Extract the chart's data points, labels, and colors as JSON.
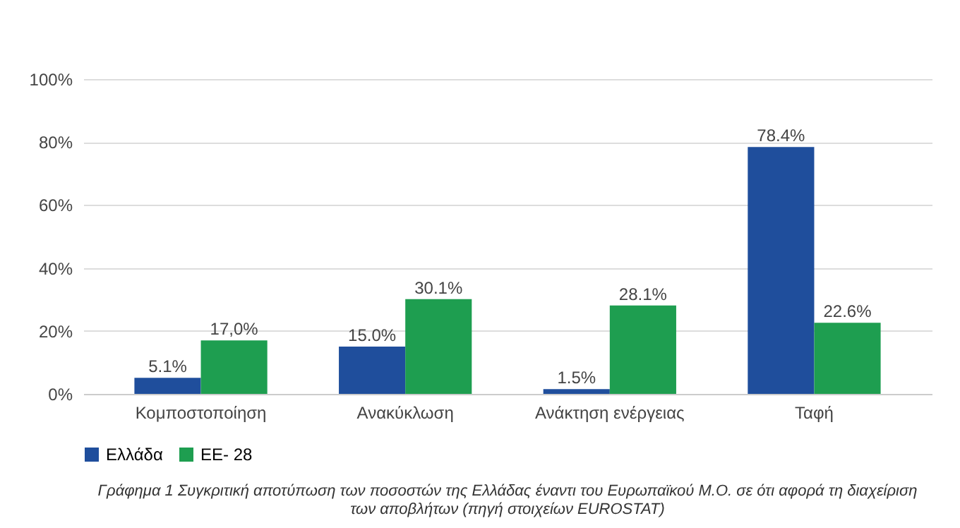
{
  "chart_data": {
    "type": "bar",
    "categories": [
      "Κομποστοποίηση",
      "Ανακύκλωση",
      "Ανάκτηση ενέργειας",
      "Ταφή"
    ],
    "series": [
      {
        "name": "Ελλάδα",
        "color": "#1f4e9c",
        "values": [
          5.1,
          15.0,
          1.5,
          78.4
        ],
        "value_labels": [
          "5.1%",
          "15.0%",
          "1.5%",
          "78.4%"
        ]
      },
      {
        "name": "ΕΕ- 28",
        "color": "#1e9e50",
        "values": [
          17.0,
          30.1,
          28.1,
          22.6
        ],
        "value_labels": [
          "17,0%",
          "30.1%",
          "28.1%",
          "22.6%"
        ]
      }
    ],
    "ylim": [
      0,
      100
    ],
    "yticks": [
      {
        "value": 0,
        "label": "0%"
      },
      {
        "value": 20,
        "label": "20%"
      },
      {
        "value": 40,
        "label": "40%"
      },
      {
        "value": 60,
        "label": "60%"
      },
      {
        "value": 80,
        "label": "80%"
      },
      {
        "value": 100,
        "label": "100%"
      }
    ],
    "grid": "y",
    "legend": "bottom",
    "annotations": [
      "Γράφημα 1 Συγκριτική αποτύπωση των ποσοστών της Ελλάδας έναντι του Ευρωπαϊκού Μ.Ο. σε ότι αφορά τη διαχείριση των αποβλήτων (πηγή στοιχείων EUROSTAT)"
    ]
  }
}
